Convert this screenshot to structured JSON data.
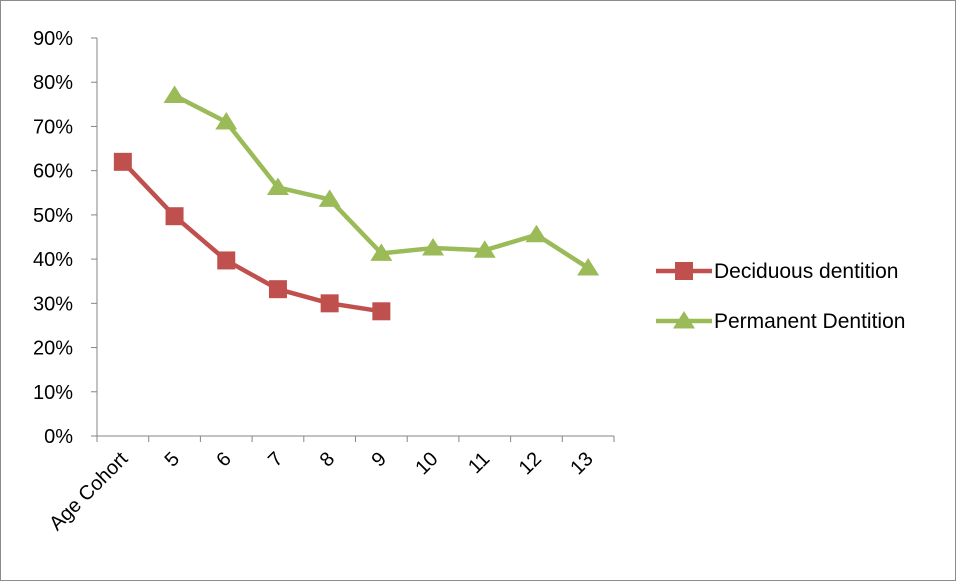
{
  "chart_data": {
    "type": "line",
    "categories": [
      "Age Cohort",
      "5",
      "6",
      "7",
      "8",
      "9",
      "10",
      "11",
      "12",
      "13"
    ],
    "y_ticks": [
      "0%",
      "10%",
      "20%",
      "30%",
      "40%",
      "50%",
      "60%",
      "70%",
      "80%",
      "90%"
    ],
    "ylim": [
      0,
      0.9
    ],
    "y_format": "percent",
    "grid": false,
    "legend_position": "right",
    "series": [
      {
        "name": "Deciduous dentition",
        "color": "#c0504d",
        "marker": "square",
        "values": [
          0.62,
          0.497,
          0.397,
          0.332,
          0.3,
          0.282,
          null,
          null,
          null,
          null
        ]
      },
      {
        "name": "Permanent Dentition",
        "color": "#9bbb59",
        "marker": "triangle",
        "values": [
          null,
          0.77,
          0.71,
          0.562,
          0.535,
          0.413,
          0.425,
          0.42,
          0.455,
          0.38
        ]
      }
    ]
  }
}
